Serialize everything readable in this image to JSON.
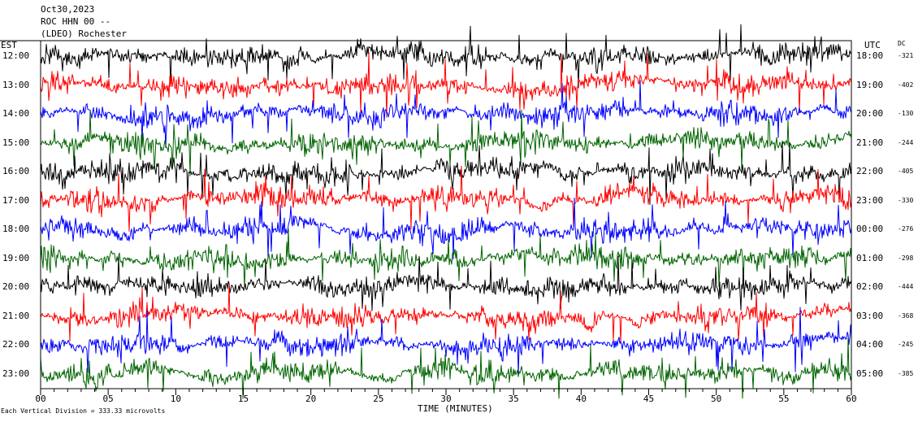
{
  "header": {
    "date": "Oct30,2023",
    "station": "ROC HHN 00 --",
    "network": "(LDEO) Rochester"
  },
  "chart_data": {
    "type": "line",
    "title": "",
    "left_axis_label": "EST",
    "right_axis_label": "UTC",
    "dc_label": "DC",
    "xlabel": "TIME (MINUTES)",
    "xlim": [
      0,
      60
    ],
    "x_ticks": [
      "00",
      "05",
      "10",
      "15",
      "20",
      "25",
      "30",
      "35",
      "40",
      "45",
      "50",
      "55",
      "60"
    ],
    "footer_note": "Each Vertical Division =  333.33 microvolts",
    "trace_colors": [
      "#000000",
      "#ff0000",
      "#0000ff",
      "#006400"
    ],
    "rows": [
      {
        "est": "12:00",
        "utc": "18:00",
        "dc": "-321"
      },
      {
        "est": "13:00",
        "utc": "19:00",
        "dc": "-402"
      },
      {
        "est": "14:00",
        "utc": "20:00",
        "dc": "-130"
      },
      {
        "est": "15:00",
        "utc": "21:00",
        "dc": "-244"
      },
      {
        "est": "16:00",
        "utc": "22:00",
        "dc": "-405"
      },
      {
        "est": "17:00",
        "utc": "23:00",
        "dc": "-330"
      },
      {
        "est": "18:00",
        "utc": "00:00",
        "dc": "-276"
      },
      {
        "est": "19:00",
        "utc": "01:00",
        "dc": "-298"
      },
      {
        "est": "20:00",
        "utc": "02:00",
        "dc": "-444"
      },
      {
        "est": "21:00",
        "utc": "03:00",
        "dc": "-368"
      },
      {
        "est": "22:00",
        "utc": "04:00",
        "dc": "-245"
      },
      {
        "est": "23:00",
        "utc": "05:00",
        "dc": "-385"
      }
    ]
  }
}
